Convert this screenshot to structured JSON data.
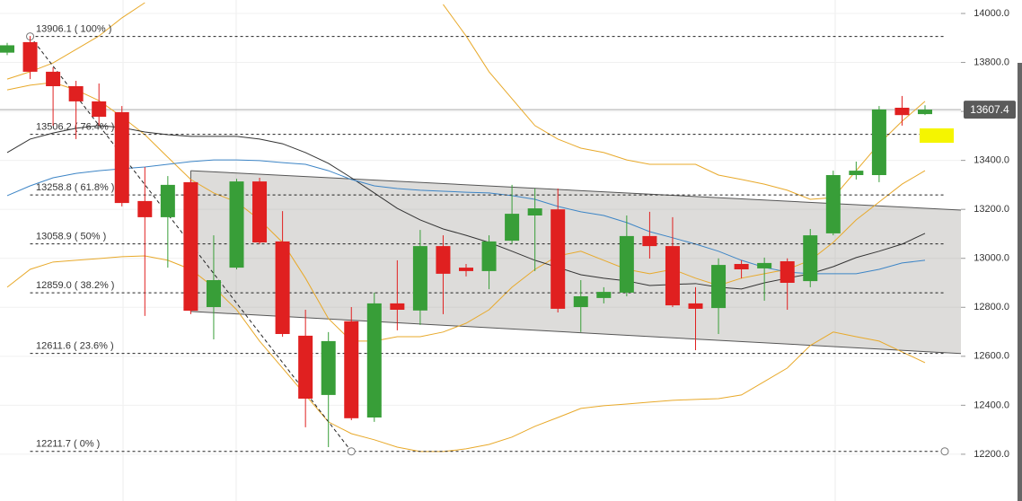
{
  "chart_data": {
    "type": "candlestick",
    "open": [
      13840,
      13883,
      13762,
      13703,
      13641,
      13597,
      13234,
      13168,
      13311,
      12801,
      12962,
      13314,
      13069,
      12684,
      12442,
      12743,
      12350,
      12816,
      12787,
      13050,
      12962,
      12948,
      13072,
      13175,
      13200,
      12801,
      12838,
      12860,
      13091,
      13050,
      12816,
      12797,
      12977,
      12959,
      12988,
      12907,
      13102,
      13340,
      13340,
      13615,
      13589
    ],
    "high": [
      13880,
      13908,
      13780,
      13725,
      13714,
      13622,
      13373,
      13336,
      13322,
      13094,
      13325,
      13329,
      13193,
      12790,
      12699,
      12801,
      12860,
      12992,
      13116,
      13094,
      12977,
      13094,
      13300,
      13285,
      13285,
      12911,
      12882,
      13175,
      13190,
      13168,
      12882,
      13000,
      12992,
      13003,
      13000,
      13120,
      13358,
      13395,
      13622,
      13663,
      13625
    ],
    "low": [
      13830,
      13732,
      13542,
      13487,
      13542,
      13212,
      12765,
      12962,
      12772,
      12669,
      12955,
      13058,
      12680,
      12310,
      12229,
      12339,
      12332,
      12706,
      12728,
      12772,
      12926,
      12874,
      13058,
      12948,
      12779,
      12699,
      12816,
      12845,
      12999,
      12801,
      12625,
      12691,
      12918,
      12827,
      12790,
      12882,
      13094,
      13322,
      13311,
      13542,
      13585
    ],
    "close": [
      13870,
      13762,
      13703,
      13641,
      13578,
      13226,
      13168,
      13300,
      12786,
      12911,
      13314,
      13065,
      12691,
      12427,
      12662,
      12347,
      12816,
      12790,
      13050,
      12937,
      12948,
      13069,
      13182,
      13204,
      12794,
      12845,
      12863,
      13091,
      13050,
      12808,
      12794,
      12973,
      12955,
      12981,
      12900,
      13094,
      13340,
      13358,
      13608,
      13585,
      13607.4
    ],
    "up_color": "#389e38",
    "down_color": "#e02020",
    "overlays": [
      {
        "color": "#e8a92a",
        "values": [
          13732,
          13762,
          13798,
          13853,
          13908,
          13982,
          14044,
          null,
          null,
          null,
          null,
          null,
          null,
          null,
          null,
          null,
          null,
          null,
          null,
          14037,
          13908,
          13762,
          13652,
          13542,
          13487,
          13450,
          13432,
          13402,
          13384,
          13384,
          13384,
          13340,
          13322,
          13303,
          13278,
          13241,
          13248,
          13358,
          13468,
          13560,
          13641
        ]
      },
      {
        "color": "#e8a92a",
        "values": [
          13688,
          13707,
          13718,
          13688,
          13644,
          13578,
          13505,
          13413,
          13322,
          13267,
          13230,
          13157,
          13065,
          12919,
          12754,
          12662,
          12662,
          12680,
          12680,
          12699,
          12735,
          12790,
          12882,
          12955,
          13010,
          13029,
          12992,
          12955,
          12937,
          12955,
          12919,
          12889,
          12919,
          12937,
          12955,
          12992,
          13065,
          13157,
          13230,
          13303,
          13358
        ]
      },
      {
        "color": "#e8a92a",
        "values": [
          12882,
          12955,
          12985,
          12992,
          12999,
          13007,
          13010,
          12992,
          12955,
          12882,
          12790,
          12662,
          12552,
          12442,
          12332,
          12284,
          12259,
          12229,
          12211,
          12211,
          12222,
          12240,
          12270,
          12314,
          12350,
          12387,
          12398,
          12405,
          12413,
          12420,
          12424,
          12427,
          12442,
          12497,
          12552,
          12644,
          12699,
          12680,
          12662,
          12618,
          12574
        ]
      },
      {
        "color": "#333333",
        "values": [
          13432,
          13487,
          13512,
          13531,
          13542,
          13534,
          13516,
          13505,
          13498,
          13498,
          13498,
          13487,
          13468,
          13432,
          13388,
          13329,
          13267,
          13204,
          13157,
          13120,
          13094,
          13065,
          13029,
          12992,
          12963,
          12933,
          12919,
          12908,
          12889,
          12893,
          12897,
          12882,
          12875,
          12900,
          12919,
          12937,
          12966,
          13003,
          13029,
          13058,
          13102
        ]
      },
      {
        "color": "#3d85c6",
        "values": [
          13256,
          13296,
          13329,
          13347,
          13358,
          13366,
          13373,
          13384,
          13395,
          13402,
          13402,
          13399,
          13391,
          13384,
          13358,
          13322,
          13296,
          13285,
          13278,
          13274,
          13270,
          13267,
          13256,
          13241,
          13212,
          13190,
          13175,
          13146,
          13109,
          13084,
          13058,
          13029,
          12992,
          12963,
          12944,
          12937,
          12937,
          12937,
          12955,
          12981,
          12992
        ]
      }
    ],
    "channel": {
      "x": [
        8,
        41.6
      ],
      "top": [
        13358,
        13197
      ],
      "bottom": [
        12783,
        12611
      ]
    },
    "fib_levels": [
      {
        "value": 13906.1,
        "label": "13906.1 ( 100% )"
      },
      {
        "value": 13506.2,
        "label": "13506.2 ( 76.4% )"
      },
      {
        "value": 13258.8,
        "label": "13258.8 ( 61.8% )"
      },
      {
        "value": 13058.9,
        "label": "13058.9 ( 50% )"
      },
      {
        "value": 12859.0,
        "label": "12859.0 ( 38.2% )"
      },
      {
        "value": 12611.6,
        "label": "12611.6 ( 23.6% )"
      },
      {
        "value": 12211.7,
        "label": "12211.7 ( 0% )"
      }
    ],
    "fib_anchor_index": [
      1,
      15
    ],
    "last_price": 13607.4,
    "ylim": [
      12009,
      14055
    ],
    "yticks": [
      {
        "value": 12200,
        "label": "12200.0"
      },
      {
        "value": 12400,
        "label": "12400.0"
      },
      {
        "value": 12600,
        "label": "12600.0"
      },
      {
        "value": 12800,
        "label": "12800.0"
      },
      {
        "value": 13000,
        "label": "13000.0"
      },
      {
        "value": 13200,
        "label": "13200.0"
      },
      {
        "value": 13400,
        "label": "13400.0"
      },
      {
        "value": 13600,
        "label": "13600.0"
      },
      {
        "value": 13800,
        "label": "13800.0"
      },
      {
        "value": 14000,
        "label": "14000.0"
      }
    ],
    "grid": true
  }
}
